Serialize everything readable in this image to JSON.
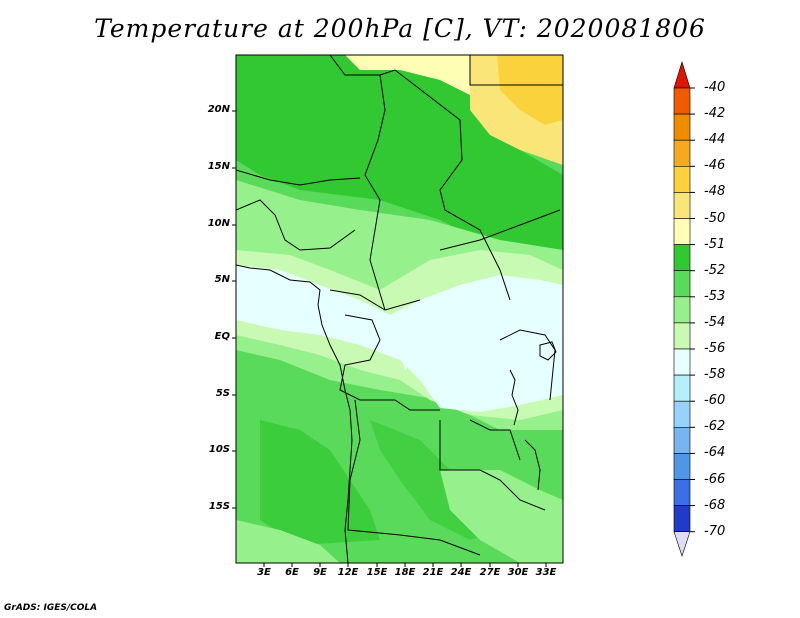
{
  "title": "Temperature at 200hPa [C], VT: 2020081806",
  "credit": "GrADS: IGES/COLA",
  "map": {
    "lat_labels": [
      "20N",
      "15N",
      "10N",
      "5N",
      "EQ",
      "5S",
      "10S",
      "15S"
    ],
    "lon_labels": [
      "3E",
      "6E",
      "9E",
      "12E",
      "15E",
      "18E",
      "21E",
      "24E",
      "27E",
      "30E",
      "33E"
    ]
  },
  "colorbar": {
    "labels": [
      "-40",
      "-42",
      "-44",
      "-46",
      "-48",
      "-50",
      "-51",
      "-52",
      "-53",
      "-54",
      "-56",
      "-58",
      "-60",
      "-62",
      "-64",
      "-66",
      "-68",
      "-70"
    ],
    "colors": [
      "#e11400",
      "#f05a00",
      "#f08c00",
      "#f5aa1e",
      "#fad23c",
      "#fae678",
      "#fefeb4",
      "#32c832",
      "#5ada5a",
      "#96f08c",
      "#c8fab4",
      "#e6ffff",
      "#b4f0fa",
      "#96d2fa",
      "#78b4f0",
      "#5096e6",
      "#3c6ee6",
      "#1e3cc8",
      "#1e1eb4",
      "#0a0a78",
      "#e1dcf5"
    ]
  }
}
